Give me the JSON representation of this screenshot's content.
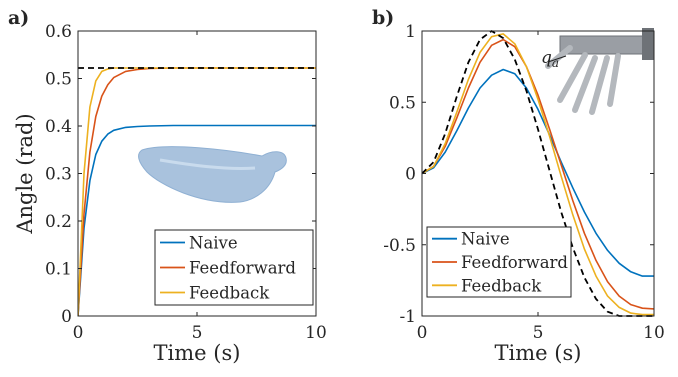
{
  "chart_data": [
    {
      "type": "line",
      "panel_label": "a)",
      "xlabel": "Time (s)",
      "ylabel": "Angle (rad)",
      "xlim": [
        0,
        10
      ],
      "ylim": [
        0,
        0.6
      ],
      "xticks": [
        0,
        5,
        10
      ],
      "yticks": [
        0,
        0.1,
        0.2,
        0.3,
        0.4,
        0.5,
        0.6
      ],
      "ytick_labels": [
        "0",
        "0.1",
        "0.2",
        "0.3",
        "0.4",
        "0.5",
        "0.6"
      ],
      "grid": false,
      "legend_position": "bottom-right",
      "x": [
        0,
        0.25,
        0.5,
        0.75,
        1,
        1.25,
        1.5,
        2,
        2.5,
        3,
        4,
        5,
        6,
        8,
        10
      ],
      "series": [
        {
          "name": "Naive",
          "color": "#0072BD",
          "style": "solid",
          "values": [
            0,
            0.185,
            0.285,
            0.34,
            0.368,
            0.383,
            0.391,
            0.397,
            0.399,
            0.4,
            0.401,
            0.401,
            0.401,
            0.401,
            0.401
          ]
        },
        {
          "name": "Feedforward",
          "color": "#D95319",
          "style": "solid",
          "values": [
            0,
            0.215,
            0.345,
            0.42,
            0.463,
            0.487,
            0.502,
            0.515,
            0.519,
            0.521,
            0.522,
            0.522,
            0.522,
            0.522,
            0.522
          ]
        },
        {
          "name": "Feedback",
          "color": "#EDB120",
          "style": "solid",
          "values": [
            0,
            0.3,
            0.44,
            0.495,
            0.515,
            0.52,
            0.522,
            0.522,
            0.522,
            0.522,
            0.522,
            0.522,
            0.522,
            0.522,
            0.522
          ]
        },
        {
          "name": "",
          "color": "#000000",
          "style": "dashed",
          "values": [
            0.522,
            0.522,
            0.522,
            0.522,
            0.522,
            0.522,
            0.522,
            0.522,
            0.522,
            0.522,
            0.522,
            0.522,
            0.522,
            0.522,
            0.522
          ]
        }
      ]
    },
    {
      "type": "line",
      "panel_label": "b)",
      "xlabel": "Time (s)",
      "ylabel": "",
      "xlim": [
        0,
        10
      ],
      "ylim": [
        -1,
        1
      ],
      "xticks": [
        0,
        5,
        10
      ],
      "yticks": [
        -1,
        -0.5,
        0,
        0.5,
        1
      ],
      "ytick_labels": [
        "-1",
        "-0.5",
        "0",
        "0.5",
        "1"
      ],
      "grid": false,
      "legend_position": "bottom-left",
      "annotation": "q",
      "annotation_subscript": "a",
      "x": [
        0,
        0.5,
        1,
        1.5,
        2,
        2.5,
        3,
        3.5,
        4,
        4.5,
        5,
        5.5,
        6,
        6.5,
        7,
        7.5,
        8,
        8.5,
        9,
        9.5,
        10
      ],
      "series": [
        {
          "name": "Naive",
          "color": "#0072BD",
          "style": "solid",
          "values": [
            0,
            0.04,
            0.15,
            0.3,
            0.46,
            0.6,
            0.69,
            0.73,
            0.7,
            0.6,
            0.45,
            0.27,
            0.08,
            -0.1,
            -0.27,
            -0.42,
            -0.54,
            -0.63,
            -0.69,
            -0.72,
            -0.72
          ]
        },
        {
          "name": "Feedforward",
          "color": "#D95319",
          "style": "solid",
          "values": [
            0,
            0.05,
            0.19,
            0.39,
            0.6,
            0.78,
            0.9,
            0.94,
            0.89,
            0.75,
            0.55,
            0.31,
            0.06,
            -0.19,
            -0.42,
            -0.61,
            -0.76,
            -0.86,
            -0.92,
            -0.945,
            -0.95
          ]
        },
        {
          "name": "Feedback",
          "color": "#EDB120",
          "style": "solid",
          "values": [
            0,
            0.05,
            0.21,
            0.43,
            0.66,
            0.85,
            0.96,
            0.98,
            0.91,
            0.75,
            0.52,
            0.26,
            -0.02,
            -0.29,
            -0.53,
            -0.72,
            -0.86,
            -0.94,
            -0.98,
            -0.99,
            -0.99
          ]
        },
        {
          "name": "",
          "color": "#000000",
          "style": "dashed",
          "values": [
            0,
            0.08,
            0.28,
            0.54,
            0.78,
            0.94,
            1.0,
            0.95,
            0.8,
            0.58,
            0.31,
            0.02,
            -0.27,
            -0.52,
            -0.73,
            -0.88,
            -0.97,
            -1.0,
            -1.0,
            -1.0,
            -1.0
          ]
        }
      ]
    }
  ]
}
